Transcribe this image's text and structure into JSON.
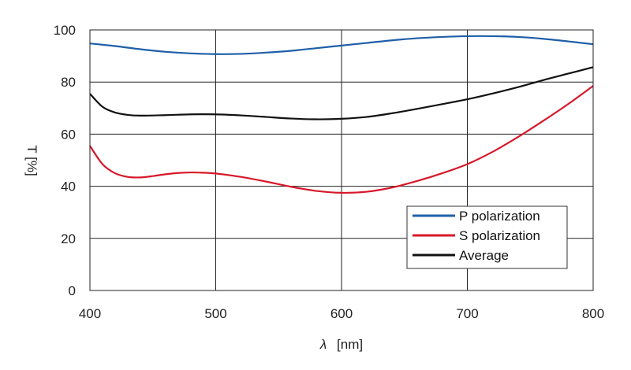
{
  "chart_data": {
    "type": "line",
    "title": "",
    "xlabel_symbol": "λ",
    "xlabel_unit": "[nm]",
    "ylabel": "T [%]",
    "xlim": [
      400,
      800
    ],
    "ylim": [
      0,
      100
    ],
    "xticks": [
      "400",
      "500",
      "600",
      "700",
      "800"
    ],
    "yticks": [
      "0",
      "20",
      "40",
      "60",
      "80",
      "100"
    ],
    "grid": true,
    "legend_position": "bottom-right",
    "series": [
      {
        "name": "P polarization",
        "color": "#1f5fa8",
        "x": [
          400,
          420,
          440,
          460,
          480,
          500,
          520,
          540,
          560,
          580,
          600,
          620,
          640,
          660,
          680,
          700,
          720,
          740,
          760,
          780,
          800
        ],
        "y": [
          94.8,
          93.8,
          92.6,
          91.6,
          91.0,
          90.7,
          90.8,
          91.3,
          92.0,
          93.0,
          94.0,
          95.0,
          96.0,
          96.8,
          97.3,
          97.6,
          97.6,
          97.3,
          96.6,
          95.6,
          94.5
        ]
      },
      {
        "name": "S polarization",
        "color": "#d7182a",
        "x": [
          400,
          410,
          420,
          430,
          440,
          450,
          460,
          470,
          480,
          490,
          500,
          520,
          540,
          560,
          580,
          600,
          620,
          640,
          660,
          680,
          700,
          720,
          740,
          760,
          780,
          800
        ],
        "y": [
          55.5,
          48.5,
          45.0,
          43.6,
          43.4,
          43.9,
          44.6,
          45.1,
          45.3,
          45.2,
          44.9,
          43.6,
          41.8,
          39.8,
          38.2,
          37.5,
          37.9,
          39.5,
          42.0,
          45.0,
          48.5,
          53.2,
          58.8,
          65.0,
          71.5,
          78.5
        ]
      },
      {
        "name": "Average",
        "color": "#111111",
        "x": [
          400,
          410,
          420,
          430,
          440,
          460,
          480,
          500,
          520,
          540,
          560,
          580,
          600,
          620,
          640,
          660,
          680,
          700,
          720,
          740,
          760,
          780,
          800
        ],
        "y": [
          75.5,
          70.5,
          68.3,
          67.4,
          67.1,
          67.3,
          67.6,
          67.6,
          67.2,
          66.6,
          66.0,
          65.7,
          65.9,
          66.6,
          68.0,
          69.7,
          71.5,
          73.4,
          75.6,
          78.0,
          80.7,
          83.2,
          85.7
        ]
      }
    ]
  }
}
